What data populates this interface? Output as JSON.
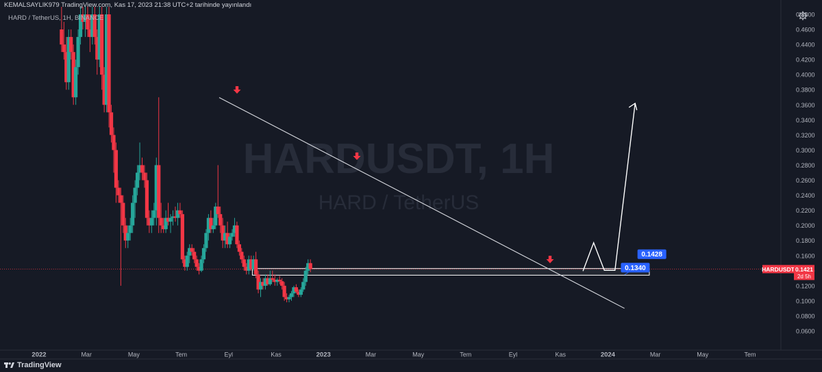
{
  "header": {
    "published": "KEMALSAYLIK979 TradingView.com, Kas 17, 2023 21:38 UTC+2 tarihinde yayınlandı",
    "symbol_line": "HARD / TetherUS, 1H, BINANCE"
  },
  "watermark": {
    "line1": "HARDUSDT, 1H",
    "line2": "HARD / TetherUS"
  },
  "footer": {
    "brand": "TradingView"
  },
  "colors": {
    "background": "#161a25",
    "up": "#26a69a",
    "down": "#f23645",
    "axis_text": "#b2b5be",
    "label_blue": "#2962ff",
    "price_red": "#f23645",
    "drawing": "#ffffff"
  },
  "icons": {
    "settings": "gear-icon",
    "logo": "tradingview-logo-icon"
  },
  "chart_data": {
    "type": "candlestick",
    "symbol": "HARDUSDT",
    "timeframe": "1H",
    "y_axis": {
      "min": 0.06,
      "max": 0.48,
      "step": 0.02,
      "tick_labels": [
        "0.4800",
        "0.4600",
        "0.4400",
        "0.4200",
        "0.4000",
        "0.3800",
        "0.3600",
        "0.3400",
        "0.3200",
        "0.3000",
        "0.2800",
        "0.2600",
        "0.2400",
        "0.2200",
        "0.2000",
        "0.1800",
        "0.1600",
        "0.1400",
        "0.1200",
        "0.1000",
        "0.0800",
        "0.0600"
      ]
    },
    "x_axis": {
      "labels": [
        {
          "text": "2022",
          "t": 0
        },
        {
          "text": "Mar",
          "t": 2
        },
        {
          "text": "May",
          "t": 4
        },
        {
          "text": "Tem",
          "t": 6
        },
        {
          "text": "Eyl",
          "t": 8
        },
        {
          "text": "Kas",
          "t": 10
        },
        {
          "text": "2023",
          "t": 12
        },
        {
          "text": "Mar",
          "t": 14
        },
        {
          "text": "May",
          "t": 16
        },
        {
          "text": "Tem",
          "t": 18
        },
        {
          "text": "Eyl",
          "t": 20
        },
        {
          "text": "Kas",
          "t": 22
        },
        {
          "text": "2024",
          "t": 24
        },
        {
          "text": "Mar",
          "t": 26
        },
        {
          "text": "May",
          "t": 28
        },
        {
          "text": "Tem",
          "t": 30
        }
      ]
    },
    "current_price": {
      "symbol": "HARDUSDT",
      "value": "0.1421",
      "countdown": "2d 5h"
    },
    "annotations": [
      {
        "text": "0.1340",
        "price": 0.134
      },
      {
        "text": "0.1428",
        "price": 0.1428
      }
    ],
    "candles": [
      {
        "t": 0.95,
        "o": 0.46,
        "h": 0.49,
        "l": 0.43,
        "c": 0.44
      },
      {
        "t": 1.05,
        "o": 0.44,
        "h": 0.47,
        "l": 0.42,
        "c": 0.43
      },
      {
        "t": 1.15,
        "o": 0.43,
        "h": 0.45,
        "l": 0.38,
        "c": 0.39
      },
      {
        "t": 1.25,
        "o": 0.39,
        "h": 0.46,
        "l": 0.38,
        "c": 0.45
      },
      {
        "t": 1.35,
        "o": 0.45,
        "h": 0.46,
        "l": 0.42,
        "c": 0.43
      },
      {
        "t": 1.45,
        "o": 0.43,
        "h": 0.44,
        "l": 0.36,
        "c": 0.37
      },
      {
        "t": 1.55,
        "o": 0.37,
        "h": 0.42,
        "l": 0.36,
        "c": 0.41
      },
      {
        "t": 1.65,
        "o": 0.41,
        "h": 0.46,
        "l": 0.4,
        "c": 0.45
      },
      {
        "t": 1.75,
        "o": 0.45,
        "h": 0.49,
        "l": 0.44,
        "c": 0.48
      },
      {
        "t": 1.85,
        "o": 0.48,
        "h": 0.49,
        "l": 0.46,
        "c": 0.47
      },
      {
        "t": 1.95,
        "o": 0.47,
        "h": 0.49,
        "l": 0.45,
        "c": 0.48
      },
      {
        "t": 2.05,
        "o": 0.48,
        "h": 0.49,
        "l": 0.45,
        "c": 0.46
      },
      {
        "t": 2.15,
        "o": 0.46,
        "h": 0.48,
        "l": 0.43,
        "c": 0.45
      },
      {
        "t": 2.25,
        "o": 0.45,
        "h": 0.49,
        "l": 0.44,
        "c": 0.48
      },
      {
        "t": 2.35,
        "o": 0.48,
        "h": 0.49,
        "l": 0.44,
        "c": 0.45
      },
      {
        "t": 2.45,
        "o": 0.45,
        "h": 0.46,
        "l": 0.4,
        "c": 0.42
      },
      {
        "t": 2.55,
        "o": 0.42,
        "h": 0.49,
        "l": 0.41,
        "c": 0.48
      },
      {
        "t": 2.65,
        "o": 0.48,
        "h": 0.49,
        "l": 0.38,
        "c": 0.4
      },
      {
        "t": 2.75,
        "o": 0.4,
        "h": 0.41,
        "l": 0.35,
        "c": 0.36
      },
      {
        "t": 2.85,
        "o": 0.36,
        "h": 0.49,
        "l": 0.35,
        "c": 0.48
      },
      {
        "t": 2.95,
        "o": 0.48,
        "h": 0.49,
        "l": 0.33,
        "c": 0.35
      },
      {
        "t": 3.05,
        "o": 0.35,
        "h": 0.36,
        "l": 0.31,
        "c": 0.32
      },
      {
        "t": 3.15,
        "o": 0.32,
        "h": 0.33,
        "l": 0.27,
        "c": 0.3
      },
      {
        "t": 3.25,
        "o": 0.3,
        "h": 0.31,
        "l": 0.23,
        "c": 0.25
      },
      {
        "t": 3.35,
        "o": 0.25,
        "h": 0.26,
        "l": 0.23,
        "c": 0.24
      },
      {
        "t": 3.45,
        "o": 0.24,
        "h": 0.25,
        "l": 0.12,
        "c": 0.23
      },
      {
        "t": 3.55,
        "o": 0.23,
        "h": 0.24,
        "l": 0.19,
        "c": 0.2
      },
      {
        "t": 3.65,
        "o": 0.2,
        "h": 0.21,
        "l": 0.17,
        "c": 0.18
      },
      {
        "t": 3.75,
        "o": 0.18,
        "h": 0.2,
        "l": 0.17,
        "c": 0.19
      },
      {
        "t": 3.85,
        "o": 0.19,
        "h": 0.21,
        "l": 0.18,
        "c": 0.2
      },
      {
        "t": 3.95,
        "o": 0.2,
        "h": 0.24,
        "l": 0.19,
        "c": 0.23
      },
      {
        "t": 4.05,
        "o": 0.23,
        "h": 0.26,
        "l": 0.21,
        "c": 0.25
      },
      {
        "t": 4.15,
        "o": 0.25,
        "h": 0.28,
        "l": 0.24,
        "c": 0.27
      },
      {
        "t": 4.25,
        "o": 0.27,
        "h": 0.31,
        "l": 0.26,
        "c": 0.28
      },
      {
        "t": 4.35,
        "o": 0.28,
        "h": 0.29,
        "l": 0.26,
        "c": 0.27
      },
      {
        "t": 4.45,
        "o": 0.27,
        "h": 0.28,
        "l": 0.25,
        "c": 0.26
      },
      {
        "t": 4.55,
        "o": 0.26,
        "h": 0.27,
        "l": 0.2,
        "c": 0.21
      },
      {
        "t": 4.65,
        "o": 0.21,
        "h": 0.22,
        "l": 0.19,
        "c": 0.2
      },
      {
        "t": 4.75,
        "o": 0.2,
        "h": 0.22,
        "l": 0.19,
        "c": 0.21
      },
      {
        "t": 4.85,
        "o": 0.21,
        "h": 0.23,
        "l": 0.2,
        "c": 0.22
      },
      {
        "t": 4.95,
        "o": 0.22,
        "h": 0.29,
        "l": 0.2,
        "c": 0.28
      },
      {
        "t": 5.05,
        "o": 0.28,
        "h": 0.37,
        "l": 0.19,
        "c": 0.21
      },
      {
        "t": 5.15,
        "o": 0.21,
        "h": 0.23,
        "l": 0.19,
        "c": 0.2
      },
      {
        "t": 5.25,
        "o": 0.2,
        "h": 0.21,
        "l": 0.19,
        "c": 0.195
      },
      {
        "t": 5.35,
        "o": 0.195,
        "h": 0.22,
        "l": 0.19,
        "c": 0.21
      },
      {
        "t": 5.45,
        "o": 0.21,
        "h": 0.23,
        "l": 0.2,
        "c": 0.205
      },
      {
        "t": 5.55,
        "o": 0.205,
        "h": 0.215,
        "l": 0.19,
        "c": 0.21
      },
      {
        "t": 5.65,
        "o": 0.21,
        "h": 0.22,
        "l": 0.2,
        "c": 0.212
      },
      {
        "t": 5.75,
        "o": 0.212,
        "h": 0.225,
        "l": 0.205,
        "c": 0.21
      },
      {
        "t": 5.85,
        "o": 0.21,
        "h": 0.23,
        "l": 0.2,
        "c": 0.22
      },
      {
        "t": 5.95,
        "o": 0.22,
        "h": 0.23,
        "l": 0.21,
        "c": 0.215
      },
      {
        "t": 6.05,
        "o": 0.215,
        "h": 0.22,
        "l": 0.15,
        "c": 0.155
      },
      {
        "t": 6.15,
        "o": 0.155,
        "h": 0.16,
        "l": 0.14,
        "c": 0.145
      },
      {
        "t": 6.25,
        "o": 0.145,
        "h": 0.165,
        "l": 0.14,
        "c": 0.16
      },
      {
        "t": 6.35,
        "o": 0.16,
        "h": 0.175,
        "l": 0.15,
        "c": 0.17
      },
      {
        "t": 6.45,
        "o": 0.17,
        "h": 0.175,
        "l": 0.16,
        "c": 0.165
      },
      {
        "t": 6.55,
        "o": 0.165,
        "h": 0.17,
        "l": 0.15,
        "c": 0.155
      },
      {
        "t": 6.65,
        "o": 0.155,
        "h": 0.16,
        "l": 0.14,
        "c": 0.145
      },
      {
        "t": 6.75,
        "o": 0.145,
        "h": 0.15,
        "l": 0.135,
        "c": 0.14
      },
      {
        "t": 6.85,
        "o": 0.14,
        "h": 0.16,
        "l": 0.138,
        "c": 0.155
      },
      {
        "t": 6.95,
        "o": 0.155,
        "h": 0.175,
        "l": 0.15,
        "c": 0.17
      },
      {
        "t": 7.05,
        "o": 0.17,
        "h": 0.195,
        "l": 0.165,
        "c": 0.19
      },
      {
        "t": 7.15,
        "o": 0.19,
        "h": 0.215,
        "l": 0.18,
        "c": 0.21
      },
      {
        "t": 7.25,
        "o": 0.21,
        "h": 0.22,
        "l": 0.19,
        "c": 0.195
      },
      {
        "t": 7.35,
        "o": 0.195,
        "h": 0.21,
        "l": 0.19,
        "c": 0.2
      },
      {
        "t": 7.45,
        "o": 0.2,
        "h": 0.23,
        "l": 0.195,
        "c": 0.225
      },
      {
        "t": 7.55,
        "o": 0.225,
        "h": 0.28,
        "l": 0.21,
        "c": 0.215
      },
      {
        "t": 7.65,
        "o": 0.215,
        "h": 0.225,
        "l": 0.19,
        "c": 0.2
      },
      {
        "t": 7.75,
        "o": 0.2,
        "h": 0.21,
        "l": 0.17,
        "c": 0.18
      },
      {
        "t": 7.85,
        "o": 0.18,
        "h": 0.2,
        "l": 0.17,
        "c": 0.19
      },
      {
        "t": 7.95,
        "o": 0.19,
        "h": 0.205,
        "l": 0.17,
        "c": 0.175
      },
      {
        "t": 8.05,
        "o": 0.175,
        "h": 0.19,
        "l": 0.17,
        "c": 0.185
      },
      {
        "t": 8.15,
        "o": 0.185,
        "h": 0.195,
        "l": 0.18,
        "c": 0.19
      },
      {
        "t": 8.25,
        "o": 0.19,
        "h": 0.21,
        "l": 0.185,
        "c": 0.2
      },
      {
        "t": 8.35,
        "o": 0.2,
        "h": 0.205,
        "l": 0.17,
        "c": 0.175
      },
      {
        "t": 8.45,
        "o": 0.175,
        "h": 0.18,
        "l": 0.16,
        "c": 0.165
      },
      {
        "t": 8.55,
        "o": 0.165,
        "h": 0.17,
        "l": 0.15,
        "c": 0.155
      },
      {
        "t": 8.65,
        "o": 0.155,
        "h": 0.16,
        "l": 0.14,
        "c": 0.145
      },
      {
        "t": 8.75,
        "o": 0.145,
        "h": 0.15,
        "l": 0.135,
        "c": 0.14
      },
      {
        "t": 8.85,
        "o": 0.14,
        "h": 0.16,
        "l": 0.135,
        "c": 0.155
      },
      {
        "t": 8.95,
        "o": 0.155,
        "h": 0.16,
        "l": 0.14,
        "c": 0.142
      },
      {
        "t": 9.05,
        "o": 0.142,
        "h": 0.16,
        "l": 0.14,
        "c": 0.155
      },
      {
        "t": 9.15,
        "o": 0.155,
        "h": 0.165,
        "l": 0.13,
        "c": 0.135
      },
      {
        "t": 9.25,
        "o": 0.135,
        "h": 0.14,
        "l": 0.11,
        "c": 0.115
      },
      {
        "t": 9.35,
        "o": 0.115,
        "h": 0.13,
        "l": 0.105,
        "c": 0.125
      },
      {
        "t": 9.45,
        "o": 0.125,
        "h": 0.13,
        "l": 0.115,
        "c": 0.12
      },
      {
        "t": 9.55,
        "o": 0.12,
        "h": 0.135,
        "l": 0.115,
        "c": 0.13
      },
      {
        "t": 9.65,
        "o": 0.13,
        "h": 0.135,
        "l": 0.12,
        "c": 0.122
      },
      {
        "t": 9.75,
        "o": 0.122,
        "h": 0.14,
        "l": 0.12,
        "c": 0.13
      },
      {
        "t": 9.85,
        "o": 0.13,
        "h": 0.14,
        "l": 0.125,
        "c": 0.128
      },
      {
        "t": 9.95,
        "o": 0.128,
        "h": 0.135,
        "l": 0.12,
        "c": 0.125
      },
      {
        "t": 10.05,
        "o": 0.125,
        "h": 0.13,
        "l": 0.12,
        "c": 0.128
      },
      {
        "t": 10.15,
        "o": 0.128,
        "h": 0.133,
        "l": 0.122,
        "c": 0.126
      },
      {
        "t": 10.25,
        "o": 0.126,
        "h": 0.13,
        "l": 0.115,
        "c": 0.12
      },
      {
        "t": 10.35,
        "o": 0.12,
        "h": 0.125,
        "l": 0.1,
        "c": 0.105
      },
      {
        "t": 10.45,
        "o": 0.105,
        "h": 0.11,
        "l": 0.098,
        "c": 0.102
      },
      {
        "t": 10.55,
        "o": 0.102,
        "h": 0.108,
        "l": 0.098,
        "c": 0.105
      },
      {
        "t": 10.65,
        "o": 0.105,
        "h": 0.113,
        "l": 0.1,
        "c": 0.11
      },
      {
        "t": 10.75,
        "o": 0.11,
        "h": 0.12,
        "l": 0.105,
        "c": 0.118
      },
      {
        "t": 10.85,
        "o": 0.118,
        "h": 0.122,
        "l": 0.11,
        "c": 0.112
      },
      {
        "t": 10.95,
        "o": 0.112,
        "h": 0.115,
        "l": 0.105,
        "c": 0.108
      },
      {
        "t": 11.05,
        "o": 0.108,
        "h": 0.118,
        "l": 0.105,
        "c": 0.115
      },
      {
        "t": 11.15,
        "o": 0.115,
        "h": 0.13,
        "l": 0.112,
        "c": 0.125
      },
      {
        "t": 11.25,
        "o": 0.125,
        "h": 0.145,
        "l": 0.12,
        "c": 0.14
      },
      {
        "t": 11.35,
        "o": 0.14,
        "h": 0.155,
        "l": 0.135,
        "c": 0.15
      },
      {
        "t": 11.45,
        "o": 0.15,
        "h": 0.155,
        "l": 0.138,
        "c": 0.1421
      }
    ]
  }
}
